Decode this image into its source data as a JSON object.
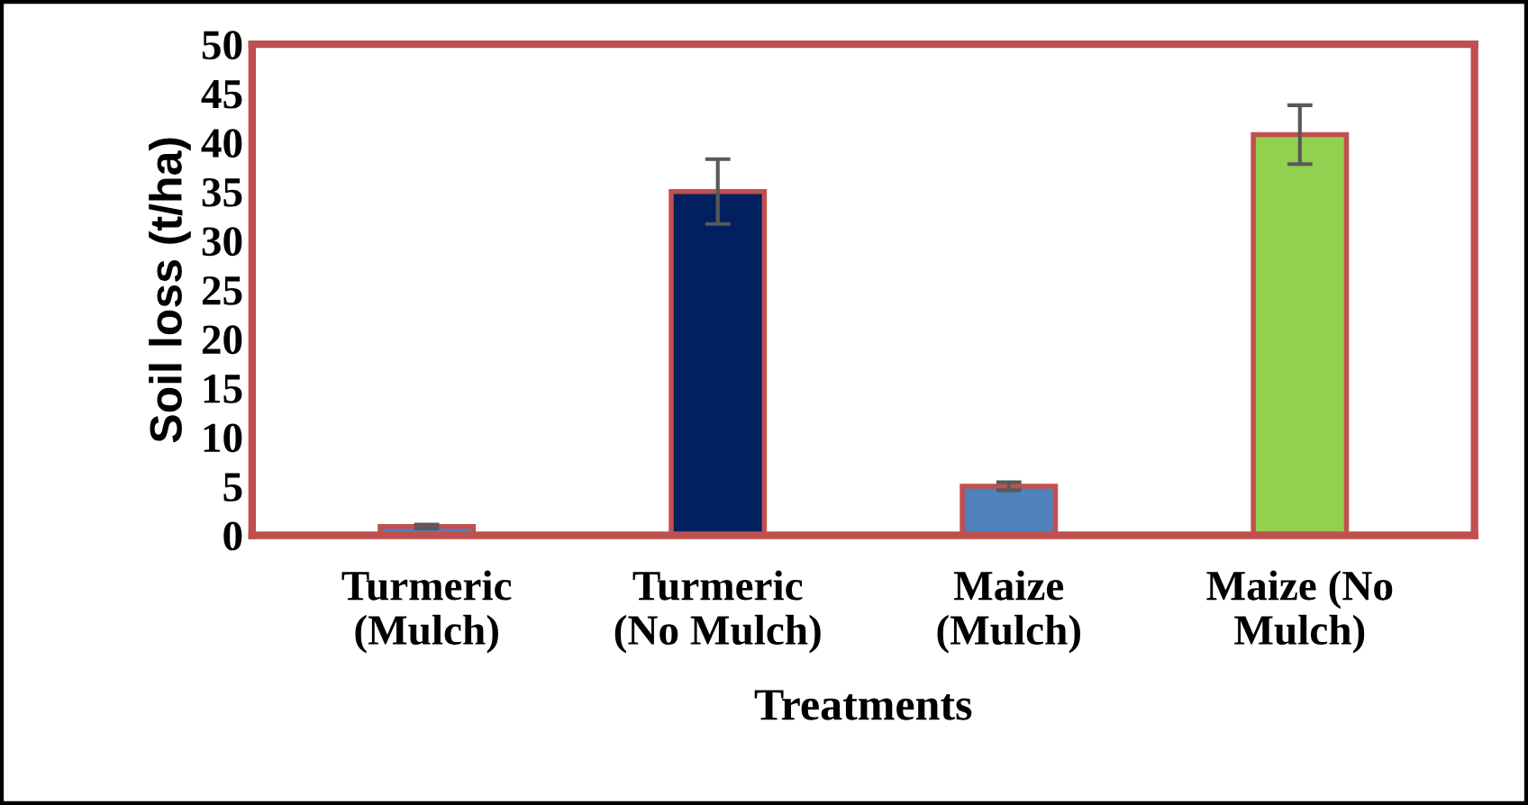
{
  "chart_data": {
    "type": "bar",
    "xlabel": "Treatments",
    "ylabel": "Soil loss (t/ha)",
    "categories": [
      "Turmeric\n(Mulch)",
      "Turmeric\n(No Mulch)",
      "Maize\n(Mulch)",
      "Maize (No\nMulch)"
    ],
    "values": [
      0.9,
      35.0,
      5.0,
      40.8
    ],
    "colors": [
      "#4f81bd",
      "#002060",
      "#4f81bd",
      "#92d050"
    ],
    "errors": [
      0.2,
      3.3,
      0.4,
      3.0
    ],
    "ylim": [
      0,
      50
    ],
    "yticks": [
      0,
      5,
      10,
      15,
      20,
      25,
      30,
      35,
      40,
      45,
      50
    ],
    "grid": false,
    "legend": false
  }
}
